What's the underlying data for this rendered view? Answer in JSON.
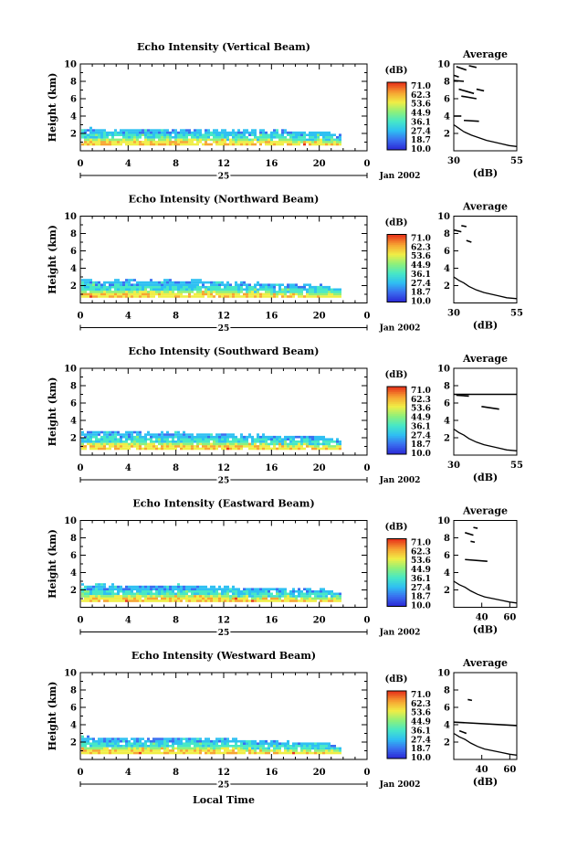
{
  "colors": {
    "scale": [
      "#2b2bd6",
      "#3a6ff0",
      "#2fc0f2",
      "#47e8c6",
      "#8ff07a",
      "#f0ee46",
      "#f7a532",
      "#e83a1c"
    ],
    "ink": "#000000",
    "background": "#ffffff"
  },
  "common": {
    "ylabel": "Height (km)",
    "xticks": [
      "0",
      "4",
      "8",
      "12",
      "16",
      "20",
      "0"
    ],
    "day_label": "25",
    "date_label": "Jan 2002",
    "x_axis_title": "Local Time",
    "colorbar_unit": "(dB)",
    "colorbar_ticks": [
      "71.0",
      "62.3",
      "53.6",
      "44.9",
      "36.1",
      "27.4",
      "18.7",
      "10.0"
    ],
    "yticks": [
      "2",
      "4",
      "6",
      "8",
      "10"
    ],
    "avg_title": "Average",
    "avg_xlabel": "(dB)"
  },
  "chart_data": [
    {
      "type": "heatmap",
      "title": "Echo Intensity (Vertical Beam)",
      "xlabel": "",
      "ylabel": "Height (km)",
      "xlim": [
        0,
        24
      ],
      "ylim": [
        0,
        10
      ],
      "zlim": [
        10.0,
        71.0
      ],
      "echo_top_km": [
        2.4,
        2.4,
        2.3,
        2.3,
        2.3,
        2.3,
        2.2,
        2.2,
        2.2,
        2.1,
        2.1,
        1.9,
        1.6
      ],
      "echo_base_km": [
        0.6,
        0.6,
        0.6,
        0.6,
        0.6,
        0.6,
        0.6,
        0.6,
        0.6,
        0.6,
        0.6,
        0.6,
        0.6
      ],
      "echo_time_h": [
        0,
        2,
        4,
        6,
        8,
        10,
        12,
        14,
        16,
        18,
        20,
        21,
        21.8
      ],
      "average_profile": {
        "xlim": [
          30,
          55
        ],
        "xticks": [
          "30",
          "55"
        ],
        "x": [
          30,
          32,
          34,
          37,
          40,
          43,
          46,
          49,
          52,
          55
        ],
        "y": [
          3.0,
          2.6,
          2.2,
          1.8,
          1.5,
          1.2,
          1.0,
          0.8,
          0.6,
          0.5
        ],
        "segments": [
          {
            "x": [
              31,
              35
            ],
            "y": [
              9.7,
              9.3
            ]
          },
          {
            "x": [
              36,
              39
            ],
            "y": [
              9.8,
              9.6
            ]
          },
          {
            "x": [
              30,
              32
            ],
            "y": [
              8.7,
              8.5
            ]
          },
          {
            "x": [
              30,
              34
            ],
            "y": [
              8.1,
              8.0
            ]
          },
          {
            "x": [
              32,
              38
            ],
            "y": [
              7.1,
              6.6
            ]
          },
          {
            "x": [
              39,
              42
            ],
            "y": [
              7.1,
              6.9
            ]
          },
          {
            "x": [
              33,
              39
            ],
            "y": [
              6.3,
              6.0
            ]
          },
          {
            "x": [
              30,
              33
            ],
            "y": [
              4.0,
              4.0
            ]
          },
          {
            "x": [
              34,
              40
            ],
            "y": [
              3.5,
              3.4
            ]
          }
        ]
      }
    },
    {
      "type": "heatmap",
      "title": "Echo Intensity (Northward Beam)",
      "xlabel": "",
      "ylabel": "Height (km)",
      "xlim": [
        0,
        24
      ],
      "ylim": [
        0,
        10
      ],
      "zlim": [
        10.0,
        71.0
      ],
      "echo_top_km": [
        2.6,
        2.5,
        2.5,
        2.4,
        2.5,
        2.4,
        2.3,
        2.2,
        2.1,
        2.0,
        1.9,
        1.7,
        1.4
      ],
      "echo_base_km": [
        0.6,
        0.6,
        0.6,
        0.6,
        0.6,
        0.6,
        0.6,
        0.6,
        0.6,
        0.6,
        0.6,
        0.6,
        0.6
      ],
      "echo_time_h": [
        0,
        2,
        4,
        6,
        8,
        10,
        12,
        14,
        16,
        18,
        20,
        21,
        21.8
      ],
      "average_profile": {
        "xlim": [
          30,
          55
        ],
        "xticks": [
          "30",
          "55"
        ],
        "x": [
          30,
          32,
          34,
          36,
          39,
          42,
          45,
          48,
          51,
          55
        ],
        "y": [
          3.0,
          2.6,
          2.3,
          1.9,
          1.5,
          1.2,
          1.0,
          0.8,
          0.6,
          0.5
        ],
        "segments": [
          {
            "x": [
              30,
              33
            ],
            "y": [
              8.4,
              8.2
            ]
          },
          {
            "x": [
              33,
              35
            ],
            "y": [
              8.9,
              8.8
            ]
          },
          {
            "x": [
              35,
              37
            ],
            "y": [
              7.2,
              7.0
            ]
          }
        ]
      }
    },
    {
      "type": "heatmap",
      "title": "Echo Intensity (Southward Beam)",
      "xlabel": "",
      "ylabel": "Height (km)",
      "xlim": [
        0,
        24
      ],
      "ylim": [
        0,
        10
      ],
      "zlim": [
        10.0,
        71.0
      ],
      "echo_top_km": [
        2.6,
        2.5,
        2.5,
        2.4,
        2.5,
        2.4,
        2.3,
        2.2,
        2.1,
        2.1,
        2.0,
        1.8,
        1.5
      ],
      "echo_base_km": [
        0.6,
        0.6,
        0.6,
        0.6,
        0.6,
        0.6,
        0.6,
        0.6,
        0.6,
        0.6,
        0.6,
        0.6,
        0.6
      ],
      "echo_time_h": [
        0,
        2,
        4,
        6,
        8,
        10,
        12,
        14,
        16,
        18,
        20,
        21,
        21.8
      ],
      "average_profile": {
        "xlim": [
          30,
          55
        ],
        "xticks": [
          "30",
          "55"
        ],
        "x": [
          30,
          32,
          34,
          36,
          39,
          42,
          45,
          48,
          51,
          55
        ],
        "y": [
          3.0,
          2.6,
          2.3,
          1.9,
          1.5,
          1.2,
          1.0,
          0.8,
          0.6,
          0.5
        ],
        "segments": [
          {
            "x": [
              30,
              55
            ],
            "y": [
              7.0,
              7.0
            ]
          },
          {
            "x": [
              31,
              36
            ],
            "y": [
              6.9,
              6.8
            ]
          },
          {
            "x": [
              41,
              48
            ],
            "y": [
              5.6,
              5.3
            ]
          }
        ]
      }
    },
    {
      "type": "heatmap",
      "title": "Echo Intensity (Eastward Beam)",
      "xlabel": "",
      "ylabel": "Height (km)",
      "xlim": [
        0,
        24
      ],
      "ylim": [
        0,
        10
      ],
      "zlim": [
        10.0,
        71.0
      ],
      "echo_top_km": [
        2.5,
        2.4,
        2.4,
        2.3,
        2.4,
        2.3,
        2.2,
        2.1,
        2.1,
        2.0,
        1.9,
        1.7,
        1.4
      ],
      "echo_base_km": [
        0.6,
        0.6,
        0.6,
        0.6,
        0.6,
        0.6,
        0.6,
        0.6,
        0.6,
        0.6,
        0.6,
        0.6,
        0.6
      ],
      "echo_time_h": [
        0,
        2,
        4,
        6,
        8,
        10,
        12,
        14,
        16,
        18,
        20,
        21,
        21.8
      ],
      "average_profile": {
        "xlim": [
          20,
          65
        ],
        "xticks": [
          "40",
          "60"
        ],
        "x": [
          20,
          24,
          28,
          32,
          37,
          42,
          48,
          54,
          60,
          65
        ],
        "y": [
          3.0,
          2.6,
          2.3,
          1.9,
          1.5,
          1.2,
          1.0,
          0.8,
          0.6,
          0.5
        ],
        "segments": [
          {
            "x": [
              34,
              37
            ],
            "y": [
              9.2,
              9.1
            ]
          },
          {
            "x": [
              28,
              34
            ],
            "y": [
              8.6,
              8.3
            ]
          },
          {
            "x": [
              32,
              35
            ],
            "y": [
              7.6,
              7.5
            ]
          },
          {
            "x": [
              28,
              44
            ],
            "y": [
              5.5,
              5.3
            ]
          }
        ]
      }
    },
    {
      "type": "heatmap",
      "title": "Echo Intensity (Westward Beam)",
      "xlabel": "Local Time",
      "ylabel": "Height (km)",
      "xlim": [
        0,
        24
      ],
      "ylim": [
        0,
        10
      ],
      "zlim": [
        10.0,
        71.0
      ],
      "echo_top_km": [
        2.5,
        2.4,
        2.4,
        2.3,
        2.4,
        2.3,
        2.2,
        2.1,
        2.0,
        1.9,
        1.8,
        1.6,
        1.3
      ],
      "echo_base_km": [
        0.6,
        0.6,
        0.6,
        0.6,
        0.6,
        0.6,
        0.6,
        0.6,
        0.6,
        0.6,
        0.6,
        0.6,
        0.6
      ],
      "echo_time_h": [
        0,
        2,
        4,
        6,
        8,
        10,
        12,
        14,
        16,
        18,
        20,
        21,
        21.8
      ],
      "average_profile": {
        "xlim": [
          20,
          65
        ],
        "xticks": [
          "40",
          "60"
        ],
        "x": [
          20,
          24,
          28,
          32,
          37,
          42,
          48,
          54,
          60,
          65
        ],
        "y": [
          3.0,
          2.6,
          2.3,
          1.9,
          1.5,
          1.2,
          1.0,
          0.8,
          0.6,
          0.5
        ],
        "segments": [
          {
            "x": [
              20,
              65
            ],
            "y": [
              4.3,
              3.9
            ]
          },
          {
            "x": [
              30,
              33
            ],
            "y": [
              6.9,
              6.8
            ]
          },
          {
            "x": [
              24,
              29
            ],
            "y": [
              3.3,
              3.0
            ]
          }
        ]
      }
    }
  ]
}
